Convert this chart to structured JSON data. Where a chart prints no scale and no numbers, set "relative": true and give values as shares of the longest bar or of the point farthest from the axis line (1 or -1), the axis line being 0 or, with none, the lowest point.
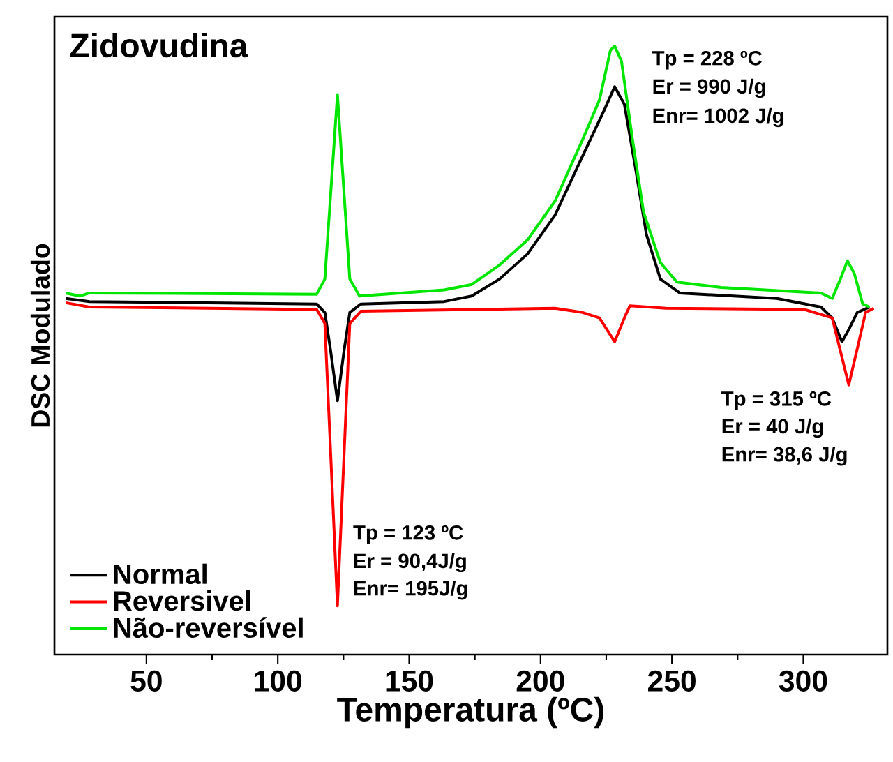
{
  "chart_data": {
    "type": "line",
    "title": "Zidovudina",
    "xlabel": "Temperatura (ºC)",
    "ylabel": "DSC Modulado",
    "relative": true,
    "xlim": [
      15,
      332
    ],
    "xticks": [
      50,
      100,
      150,
      200,
      250,
      300
    ],
    "legend": "bottom left",
    "grid": false,
    "marker": "none",
    "line_style": "solid",
    "series": [
      {
        "name": "Normal",
        "color": "#000000",
        "x": [
          19.3,
          28.3,
          114.8,
          117.9,
          120,
          122.7,
          125.3,
          127.4,
          131.6,
          163.3,
          173.8,
          184.4,
          195,
          205.5,
          216,
          224.5,
          228.2,
          231.9,
          236.1,
          240.3,
          245.6,
          253,
          289.9,
          306.7,
          311,
          314.7,
          317.3,
          320.5,
          325.2
        ],
        "values": [
          0.585,
          0.58,
          0.576,
          0.562,
          0.502,
          0.417,
          0.502,
          0.562,
          0.576,
          0.58,
          0.589,
          0.617,
          0.658,
          0.722,
          0.819,
          0.897,
          0.933,
          0.904,
          0.8,
          0.69,
          0.617,
          0.594,
          0.585,
          0.571,
          0.553,
          0.514,
          0.534,
          0.562,
          0.571
        ]
      },
      {
        "name": "Reversivel",
        "color": "#ff0000",
        "x": [
          19.3,
          28.3,
          114.8,
          117.9,
          122.7,
          127.4,
          131.6,
          205.5,
          216,
          222.4,
          228.2,
          231.9,
          234,
          247.7,
          300.4,
          311,
          317.3,
          320.5,
          323.7,
          326.8
        ],
        "values": [
          0.578,
          0.571,
          0.567,
          0.544,
          0.08,
          0.544,
          0.564,
          0.569,
          0.562,
          0.553,
          0.514,
          0.553,
          0.573,
          0.569,
          0.567,
          0.553,
          0.443,
          0.502,
          0.562,
          0.569
        ]
      },
      {
        "name": "Não-reversível",
        "color": "#00e600",
        "x": [
          19.3,
          24.6,
          28.3,
          114.8,
          117.9,
          122.7,
          127.4,
          131.1,
          163.3,
          173.8,
          184.4,
          195,
          205.5,
          216,
          222.4,
          226.6,
          228.2,
          230.8,
          235,
          239.2,
          245.6,
          251.9,
          268.8,
          306.7,
          311,
          314.1,
          316.8,
          319.4,
          322.6,
          325.2
        ],
        "values": [
          0.594,
          0.589,
          0.594,
          0.592,
          0.617,
          0.92,
          0.617,
          0.589,
          0.599,
          0.608,
          0.64,
          0.681,
          0.745,
          0.846,
          0.911,
          0.993,
          1.0,
          0.975,
          0.846,
          0.727,
          0.644,
          0.612,
          0.603,
          0.594,
          0.585,
          0.617,
          0.647,
          0.626,
          0.576,
          0.571
        ]
      }
    ],
    "annotations": [
      "Tp = 228 ºC",
      "Er = 990 J/g",
      "Enr= 1002 J/g",
      "Tp = 315 ºC",
      "Er = 40 J/g",
      "Enr= 38,6 J/g",
      "Tp = 123 ºC",
      "Er = 90,4J/g",
      "Enr= 195J/g"
    ]
  }
}
